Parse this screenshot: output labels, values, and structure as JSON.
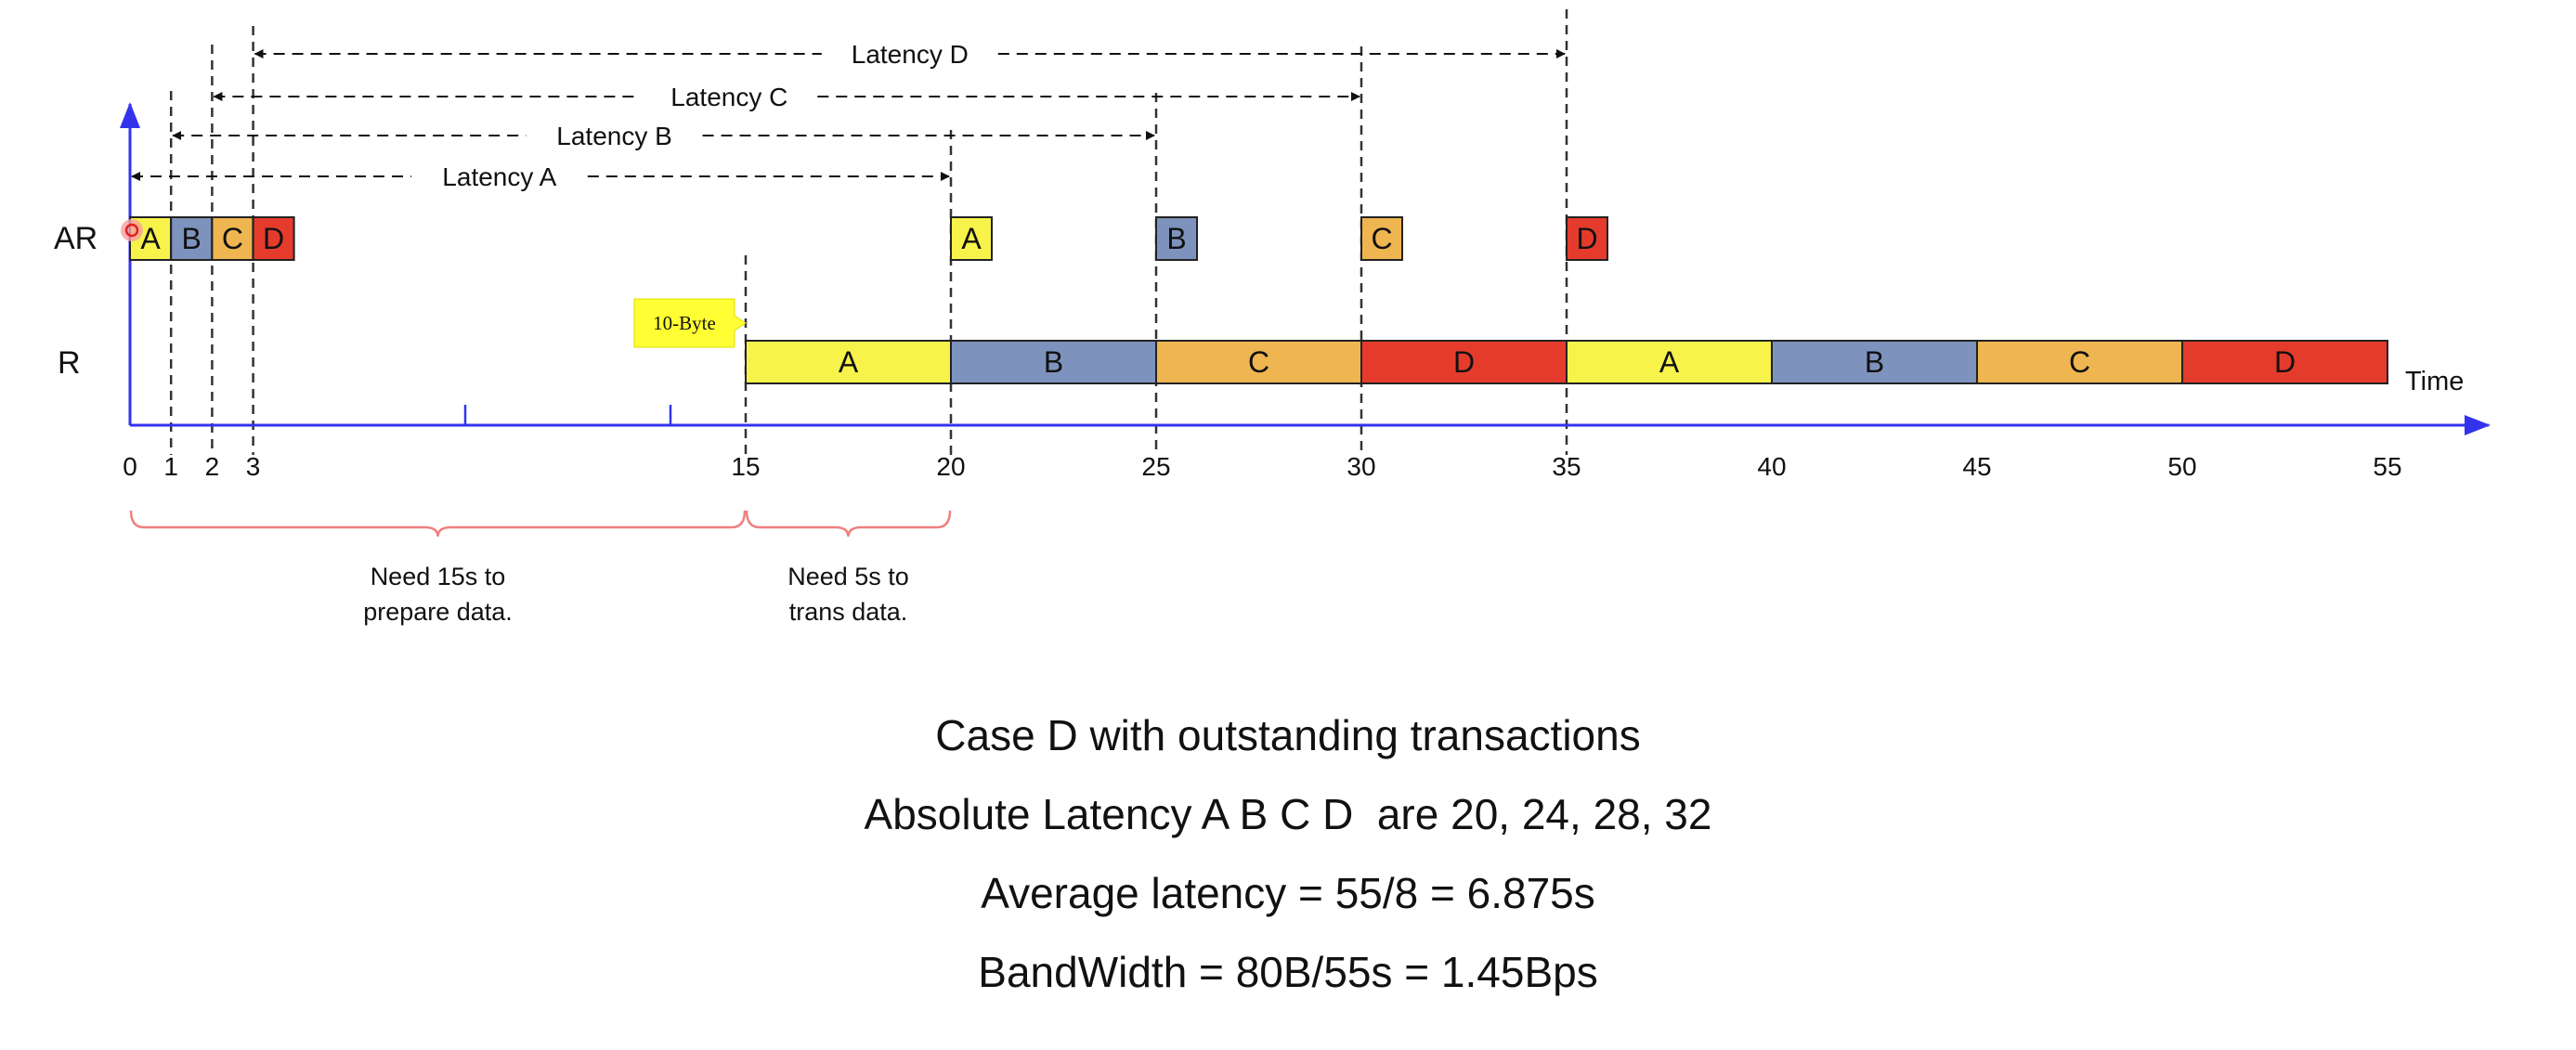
{
  "timeline": {
    "x_ticks": [
      0,
      1,
      2,
      3,
      15,
      20,
      25,
      30,
      35,
      40,
      45,
      50,
      55
    ],
    "x_label": "Time",
    "row_labels": {
      "ar": "AR",
      "r": "R"
    }
  },
  "ar_blocks": [
    {
      "label": "A",
      "start": 0,
      "color": "#f7f34a"
    },
    {
      "label": "B",
      "start": 1,
      "color": "#7d93bd"
    },
    {
      "label": "C",
      "start": 2,
      "color": "#eeb550"
    },
    {
      "label": "D",
      "start": 3,
      "color": "#e53b2c"
    },
    {
      "label": "A",
      "start": 20,
      "color": "#f7f34a"
    },
    {
      "label": "B",
      "start": 25,
      "color": "#7d93bd"
    },
    {
      "label": "C",
      "start": 30,
      "color": "#eeb550"
    },
    {
      "label": "D",
      "start": 35,
      "color": "#e53b2c"
    }
  ],
  "r_blocks": [
    {
      "label": "A",
      "start": 15,
      "end": 20,
      "color": "#f7f34a"
    },
    {
      "label": "B",
      "start": 20,
      "end": 25,
      "color": "#7d93bd"
    },
    {
      "label": "C",
      "start": 25,
      "end": 30,
      "color": "#eeb550"
    },
    {
      "label": "D",
      "start": 30,
      "end": 35,
      "color": "#e53b2c"
    },
    {
      "label": "A",
      "start": 35,
      "end": 40,
      "color": "#f7f34a"
    },
    {
      "label": "B",
      "start": 40,
      "end": 45,
      "color": "#7d93bd"
    },
    {
      "label": "C",
      "start": 45,
      "end": 50,
      "color": "#eeb550"
    },
    {
      "label": "D",
      "start": 50,
      "end": 55,
      "color": "#e53b2c"
    }
  ],
  "latencies": [
    {
      "label": "Latency A",
      "from": 0,
      "to": 20
    },
    {
      "label": "Latency B",
      "from": 1,
      "to": 25
    },
    {
      "label": "Latency C",
      "from": 2,
      "to": 30
    },
    {
      "label": "Latency D",
      "from": 3,
      "to": 35
    }
  ],
  "callout": {
    "text": "10-Byte",
    "at": 15,
    "color": "#ffff33"
  },
  "braces": [
    {
      "from": 0,
      "to": 15,
      "lines": [
        "Need 15s to",
        "prepare data."
      ]
    },
    {
      "from": 15,
      "to": 20,
      "lines": [
        "Need 5s to",
        "trans data."
      ]
    }
  ],
  "captions": [
    "Case D with outstanding transactions",
    "Absolute Latency A B C D  are 20, 24, 28, 32",
    "Average latency = 55/8 = 6.875s",
    "BandWidth = 80B/55s = 1.45Bps"
  ],
  "colors": {
    "axis": "#3333ee",
    "brace": "#f08080",
    "guide": "#555555"
  }
}
